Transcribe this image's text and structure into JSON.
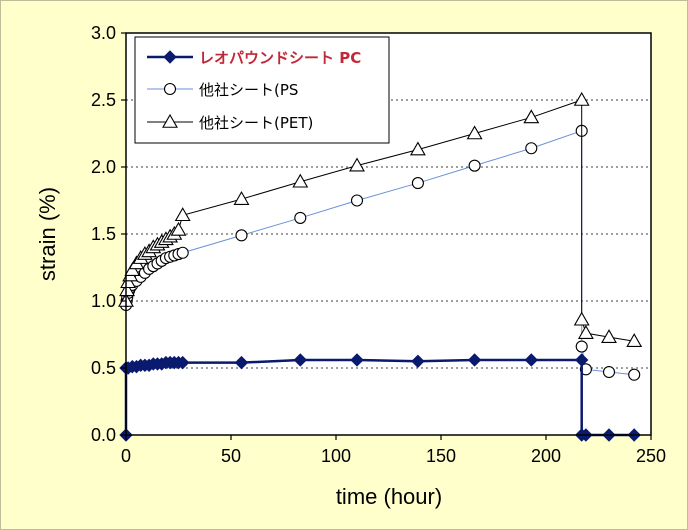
{
  "chart_data": {
    "type": "line",
    "title": "",
    "xlabel": "time (hour)",
    "ylabel": "strain (%)",
    "xlim": [
      0,
      250
    ],
    "ylim": [
      0.0,
      3.0
    ],
    "x_ticks": [
      0,
      50,
      100,
      150,
      200,
      250
    ],
    "y_ticks": [
      0.0,
      0.5,
      1.0,
      1.5,
      2.0,
      2.5,
      3.0
    ],
    "x_tick_labels": [
      "0",
      "50",
      "100",
      "150",
      "200",
      "250"
    ],
    "y_tick_labels": [
      "0.0",
      "0.5",
      "1.0",
      "1.5",
      "2.0",
      "2.5",
      "3.0"
    ],
    "grid": "horizontal-dotted",
    "legend_position": "top-left",
    "colors": {
      "background": "#ffffcc",
      "plot_area": "#ffffff",
      "pc": "#0a1a6e",
      "ps_line": "#6a8fd8",
      "pc_label": "#c0283a"
    },
    "series": [
      {
        "name": "レオパウンドシート PC",
        "marker": "filled-diamond",
        "points": [
          [
            0,
            0.0
          ],
          [
            0,
            0.5
          ],
          [
            1,
            0.5
          ],
          [
            3,
            0.51
          ],
          [
            5,
            0.51
          ],
          [
            7,
            0.52
          ],
          [
            9,
            0.52
          ],
          [
            11,
            0.52
          ],
          [
            13,
            0.53
          ],
          [
            15,
            0.53
          ],
          [
            17,
            0.53
          ],
          [
            19,
            0.54
          ],
          [
            21,
            0.54
          ],
          [
            23,
            0.54
          ],
          [
            25,
            0.54
          ],
          [
            27,
            0.54
          ],
          [
            55,
            0.54
          ],
          [
            83,
            0.56
          ],
          [
            110,
            0.56
          ],
          [
            139,
            0.55
          ],
          [
            166,
            0.56
          ],
          [
            193,
            0.56
          ],
          [
            217,
            0.56
          ],
          [
            217,
            0.0
          ],
          [
            219,
            0.0
          ],
          [
            230,
            0.0
          ],
          [
            242,
            0.0
          ]
        ]
      },
      {
        "name": "他社シート(PS",
        "marker": "open-circle",
        "points": [
          [
            0,
            0.97
          ],
          [
            0.3,
            1.0
          ],
          [
            0.6,
            1.03
          ],
          [
            1,
            1.06
          ],
          [
            1.5,
            1.08
          ],
          [
            2,
            1.1
          ],
          [
            3,
            1.12
          ],
          [
            5,
            1.15
          ],
          [
            7,
            1.18
          ],
          [
            9,
            1.21
          ],
          [
            11,
            1.24
          ],
          [
            13,
            1.26
          ],
          [
            15,
            1.28
          ],
          [
            17,
            1.3
          ],
          [
            19,
            1.32
          ],
          [
            21,
            1.33
          ],
          [
            23,
            1.34
          ],
          [
            25,
            1.35
          ],
          [
            27,
            1.36
          ],
          [
            55,
            1.49
          ],
          [
            83,
            1.62
          ],
          [
            110,
            1.75
          ],
          [
            139,
            1.88
          ],
          [
            166,
            2.01
          ],
          [
            193,
            2.14
          ],
          [
            217,
            2.27
          ],
          [
            217,
            0.66
          ],
          [
            219,
            0.49
          ],
          [
            230,
            0.47
          ],
          [
            242,
            0.45
          ]
        ]
      },
      {
        "name": "他社シート(PET)",
        "marker": "open-triangle",
        "points": [
          [
            0,
            1.0
          ],
          [
            0.5,
            1.08
          ],
          [
            1,
            1.14
          ],
          [
            2,
            1.19
          ],
          [
            3,
            1.23
          ],
          [
            5,
            1.28
          ],
          [
            7,
            1.32
          ],
          [
            9,
            1.35
          ],
          [
            11,
            1.37
          ],
          [
            13,
            1.4
          ],
          [
            15,
            1.42
          ],
          [
            17,
            1.44
          ],
          [
            19,
            1.46
          ],
          [
            21,
            1.48
          ],
          [
            23,
            1.5
          ],
          [
            25,
            1.53
          ],
          [
            27,
            1.64
          ],
          [
            55,
            1.76
          ],
          [
            83,
            1.89
          ],
          [
            110,
            2.01
          ],
          [
            139,
            2.13
          ],
          [
            166,
            2.25
          ],
          [
            193,
            2.37
          ],
          [
            217,
            2.5
          ],
          [
            217,
            0.86
          ],
          [
            219,
            0.76
          ],
          [
            230,
            0.73
          ],
          [
            242,
            0.7
          ]
        ]
      }
    ]
  }
}
